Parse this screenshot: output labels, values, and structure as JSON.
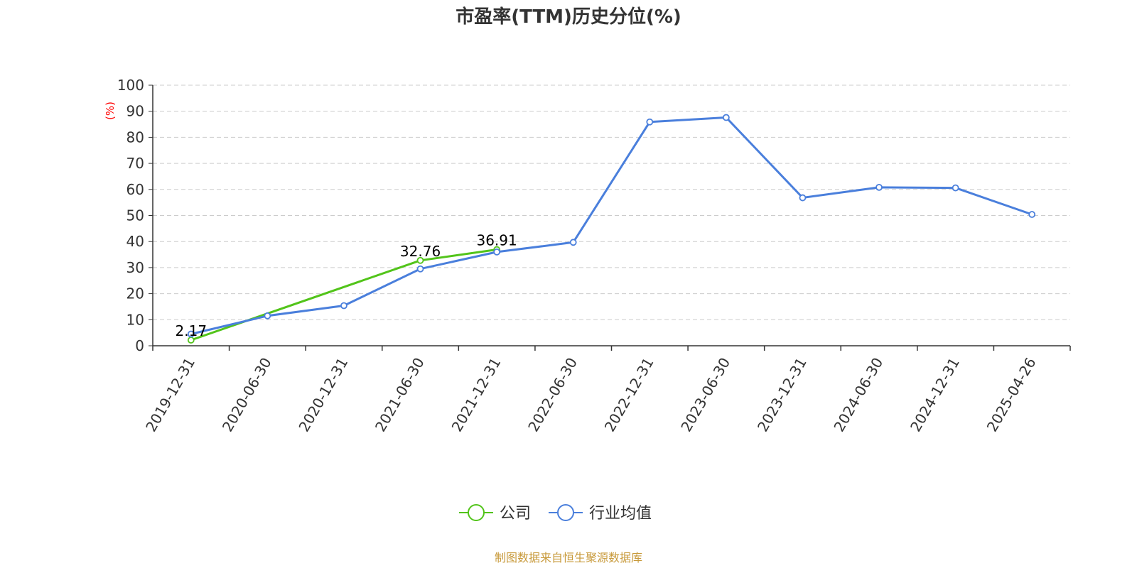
{
  "chart_data": {
    "type": "line",
    "title": "市盈率(TTM)历史分位(%)",
    "ylabel": "(%)",
    "ylim": [
      0,
      100
    ],
    "yticks": [
      0,
      10,
      20,
      30,
      40,
      50,
      60,
      70,
      80,
      90,
      100
    ],
    "grid": true,
    "categories": [
      "2019-12-31",
      "2020-06-30",
      "2020-12-31",
      "2021-06-30",
      "2021-12-31",
      "2022-06-30",
      "2022-12-31",
      "2023-06-30",
      "2023-12-31",
      "2024-06-30",
      "2024-12-31",
      "2025-04-26"
    ],
    "series": [
      {
        "name": "公司",
        "color": "#52c41a",
        "values": [
          2.17,
          null,
          null,
          32.76,
          36.91,
          null,
          null,
          null,
          null,
          null,
          null,
          null
        ]
      },
      {
        "name": "行业均值",
        "color": "#4a7fdc",
        "values": [
          4.5,
          11.5,
          15.4,
          29.5,
          36.0,
          39.7,
          85.9,
          87.6,
          56.8,
          60.8,
          60.6,
          50.4
        ]
      }
    ],
    "data_labels": [
      {
        "series": 0,
        "index": 0,
        "text": "2.17"
      },
      {
        "series": 0,
        "index": 3,
        "text": "32.76"
      },
      {
        "series": 0,
        "index": 4,
        "text": "36.91"
      }
    ],
    "legend_position": "bottom-center",
    "source": "制图数据来自恒生聚源数据库"
  }
}
